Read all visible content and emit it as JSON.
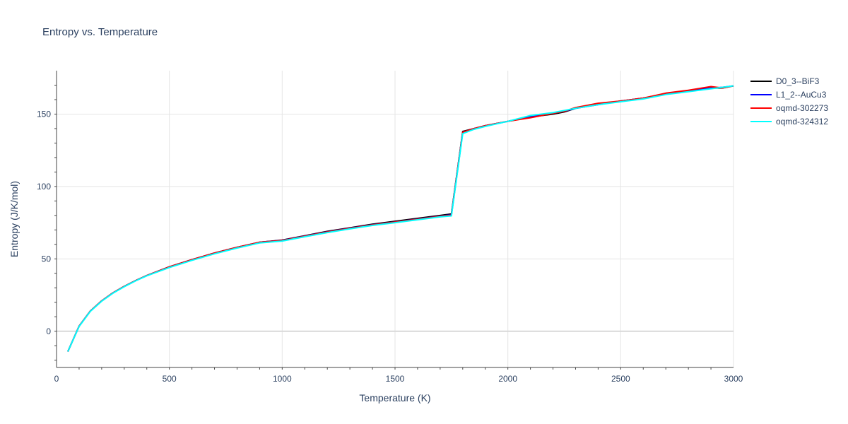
{
  "chart_data": {
    "type": "line",
    "title": "Entropy vs. Temperature",
    "xlabel": "Temperature (K)",
    "ylabel": "Entropy (J/K/mol)",
    "xlim": [
      0,
      3000
    ],
    "ylim": [
      -25,
      180
    ],
    "xticks": [
      0,
      500,
      1000,
      1500,
      2000,
      2500,
      3000
    ],
    "yticks": [
      0,
      50,
      100,
      150
    ],
    "grid": true,
    "legend_position": "top-right outside",
    "series": [
      {
        "name": "D0_3--BiF3",
        "color": "#000000",
        "x": [
          50,
          100,
          150,
          200,
          250,
          300,
          350,
          400,
          500,
          600,
          700,
          800,
          900,
          1000,
          1100,
          1200,
          1300,
          1400,
          1500,
          1600,
          1700,
          1750,
          1800,
          1850,
          1900,
          2000,
          2100,
          2200,
          2250,
          2300,
          2400,
          2500,
          2600,
          2700,
          2800,
          2900,
          2950,
          3000
        ],
        "y": [
          -14,
          3.5,
          14,
          21,
          26.5,
          31,
          35,
          38.5,
          44.5,
          49.5,
          54,
          58,
          61.5,
          63,
          66,
          69,
          71.5,
          74,
          76,
          78,
          80,
          81,
          138,
          140,
          142,
          145,
          148,
          150,
          151.5,
          154,
          157,
          159,
          161,
          164,
          166,
          168,
          168,
          169.5
        ]
      },
      {
        "name": "L1_2--AuCu3",
        "color": "#0000ff",
        "x": [
          50,
          100,
          150,
          200,
          250,
          300,
          350,
          400,
          500,
          600,
          700,
          800,
          900,
          1000,
          1100,
          1200,
          1300,
          1400,
          1500,
          1600,
          1700,
          1750,
          1800,
          1850,
          1900,
          2000,
          2100,
          2200,
          2250,
          2300,
          2400,
          2500,
          2600,
          2700,
          2800,
          2900,
          2950,
          3000
        ],
        "y": [
          -14,
          3.5,
          14,
          21,
          26.5,
          31,
          35,
          38.5,
          44.5,
          49.5,
          54,
          58,
          61.5,
          62.8,
          65.8,
          68.7,
          71.2,
          73.6,
          75.5,
          77.5,
          79.5,
          80.5,
          137.5,
          140,
          142,
          145,
          148.5,
          150.5,
          152,
          154,
          156.5,
          159,
          161,
          164,
          166,
          168,
          168.5,
          169.5
        ]
      },
      {
        "name": "oqmd-302273",
        "color": "#ff0000",
        "x": [
          50,
          100,
          150,
          200,
          250,
          300,
          350,
          400,
          500,
          600,
          700,
          800,
          900,
          1000,
          1100,
          1200,
          1300,
          1400,
          1500,
          1600,
          1700,
          1750,
          1800,
          1850,
          1900,
          2000,
          2100,
          2200,
          2250,
          2300,
          2400,
          2500,
          2600,
          2700,
          2800,
          2900,
          2950,
          3000
        ],
        "y": [
          -14,
          3.5,
          14,
          21,
          26.5,
          31,
          35,
          38.5,
          44.5,
          49.5,
          54,
          58,
          61.5,
          62.7,
          65.7,
          68.6,
          71.1,
          73.5,
          75.4,
          77.4,
          79.4,
          80.2,
          137.5,
          140,
          142,
          145,
          147.5,
          150.5,
          152,
          154.5,
          157.5,
          159,
          161,
          164.5,
          166.5,
          169,
          168,
          169.5
        ]
      },
      {
        "name": "oqmd-324312",
        "color": "#00ffff",
        "x": [
          50,
          100,
          150,
          200,
          250,
          300,
          350,
          400,
          500,
          600,
          700,
          800,
          900,
          1000,
          1100,
          1200,
          1300,
          1400,
          1500,
          1600,
          1700,
          1750,
          1800,
          1850,
          1900,
          2000,
          2100,
          2200,
          2250,
          2300,
          2400,
          2500,
          2600,
          2700,
          2800,
          2900,
          2950,
          3000
        ],
        "y": [
          -14,
          3.3,
          13.8,
          20.8,
          26.3,
          30.8,
          34.8,
          38.3,
          44,
          49,
          53.5,
          57.5,
          61,
          62.3,
          65.3,
          68.2,
          70.7,
          73.1,
          75,
          77,
          79,
          79.7,
          136.5,
          139.5,
          141.5,
          145,
          149,
          151,
          152.5,
          154,
          156.5,
          158.5,
          160.5,
          163.5,
          165.5,
          167.5,
          168.5,
          169.5
        ]
      }
    ]
  }
}
